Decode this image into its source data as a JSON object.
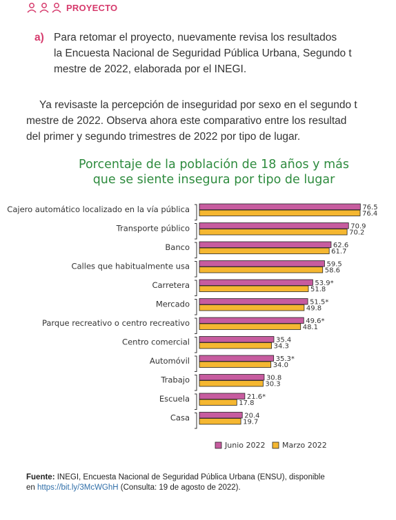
{
  "header": {
    "title": "PROYECTO",
    "icon": "people-group-icon",
    "accent": "#d63a6c"
  },
  "question": {
    "marker": "a)",
    "lines": [
      "Para retomar el proyecto, nuevamente revisa los resultados",
      "la Encuesta Nacional de Seguridad Pública Urbana, Segundo t",
      "mestre de 2022, elaborada por el INEGI."
    ]
  },
  "intro": {
    "lines": [
      "Ya revisaste la percepción de inseguridad por sexo en el segundo t",
      "mestre de 2022. Observa ahora este comparativo entre los resultad",
      "del primer y segundo trimestres de 2022 por tipo de lugar."
    ]
  },
  "chart_data": {
    "type": "bar",
    "orientation": "horizontal",
    "title": [
      "Porcentaje de la población de 18 años y más",
      "que se siente insegura por tipo de lugar"
    ],
    "categories": [
      "Cajero automático localizado en la vía pública",
      "Transporte público",
      "Banco",
      "Calles que habitualmente usa",
      "Carretera",
      "Mercado",
      "Parque recreativo o centro recreativo",
      "Centro comercial",
      "Automóvil",
      "Trabajo",
      "Escuela",
      "Casa"
    ],
    "series": [
      {
        "name": "Junio 2022",
        "color": "#c75c9f",
        "values": [
          76.5,
          70.9,
          62.6,
          59.5,
          53.9,
          51.5,
          49.6,
          35.4,
          35.3,
          30.8,
          21.6,
          20.4
        ],
        "labels": [
          "76.5",
          "70.9",
          "62.6",
          "59.5",
          "53.9*",
          "51.5*",
          "49.6*",
          "35.4",
          "35.3*",
          "30.8",
          "21.6*",
          "20.4"
        ]
      },
      {
        "name": "Marzo 2022",
        "color": "#f5b731",
        "values": [
          76.4,
          70.2,
          61.7,
          58.6,
          51.8,
          49.8,
          48.1,
          34.3,
          34.0,
          30.3,
          17.8,
          19.7
        ],
        "labels": [
          "76.4",
          "70.2",
          "61.7",
          "58.6",
          "51.8",
          "49.8",
          "48.1",
          "34.3",
          "34.0",
          "30.3",
          "17.8",
          "19.7"
        ]
      }
    ],
    "legend_position": "bottom",
    "grid": false
  },
  "source": {
    "label": "Fuente:",
    "text": "INEGI, Encuesta Nacional de Seguridad Pública Urbana (ENSU), disponible",
    "line2_prefix": "en ",
    "link": "https://bit.ly/3McWGhH",
    "line2_suffix": " (Consulta: 19 de agosto de 2022)."
  }
}
